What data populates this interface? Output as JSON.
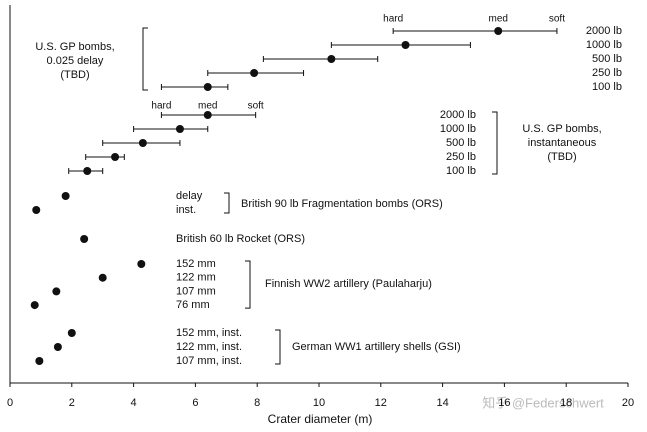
{
  "chart_data": {
    "type": "dotplot",
    "xlabel": "Crater diameter (m)",
    "xlim": [
      0,
      20
    ],
    "xticks": [
      0,
      2,
      4,
      6,
      8,
      10,
      12,
      14,
      16,
      18,
      20
    ],
    "color": "#111111",
    "watermark": "知乎 @Federschwert",
    "groups": [
      {
        "label": [
          "U.S. GP bombs,",
          "0.025 delay",
          "(TBD)"
        ],
        "markers": [
          "hard",
          "med",
          "soft"
        ],
        "items": [
          {
            "name": "2000 lb",
            "x": 15.8,
            "xmin": 12.4,
            "xmax": 17.7
          },
          {
            "name": "1000 lb",
            "x": 12.8,
            "xmin": 10.4,
            "xmax": 14.9
          },
          {
            "name": "500 lb",
            "x": 10.4,
            "xmin": 8.2,
            "xmax": 11.9
          },
          {
            "name": "250 lb",
            "x": 7.9,
            "xmin": 6.4,
            "xmax": 9.5
          },
          {
            "name": "100 lb",
            "x": 6.4,
            "xmin": 4.9,
            "xmax": 7.05
          }
        ]
      },
      {
        "label": [
          "U.S. GP bombs,",
          "instantaneous",
          "(TBD)"
        ],
        "markers": [
          "hard",
          "med",
          "soft"
        ],
        "items": [
          {
            "name": "2000 lb",
            "x": 6.4,
            "xmin": 4.9,
            "xmax": 7.95
          },
          {
            "name": "1000 lb",
            "x": 5.5,
            "xmin": 4.0,
            "xmax": 6.4
          },
          {
            "name": "500 lb",
            "x": 4.3,
            "xmin": 3.0,
            "xmax": 5.5
          },
          {
            "name": "250 lb",
            "x": 3.4,
            "xmin": 2.45,
            "xmax": 3.7
          },
          {
            "name": "100 lb",
            "x": 2.5,
            "xmin": 1.9,
            "xmax": 3.0
          }
        ]
      },
      {
        "label": [
          "British 90 lb Fragmentation bombs (ORS)"
        ],
        "items": [
          {
            "name": "delay",
            "x": 1.8
          },
          {
            "name": "inst.",
            "x": 0.85
          }
        ]
      },
      {
        "label": [
          "British 60 lb Rocket (ORS)"
        ],
        "items": [
          {
            "name": null,
            "x": 2.4
          }
        ]
      },
      {
        "label": [
          "Finnish WW2 artillery (Paulaharju)"
        ],
        "items": [
          {
            "name": "152 mm",
            "x": 4.25
          },
          {
            "name": "122 mm",
            "x": 3.0
          },
          {
            "name": "107 mm",
            "x": 1.5
          },
          {
            "name": "76 mm",
            "x": 0.8
          }
        ]
      },
      {
        "label": [
          "German WW1 artillery shells (GSI)"
        ],
        "items": [
          {
            "name": "152 mm, inst.",
            "x": 2.0
          },
          {
            "name": "122 mm, inst.",
            "x": 1.55
          },
          {
            "name": "107 mm, inst.",
            "x": 0.95
          }
        ]
      }
    ]
  }
}
